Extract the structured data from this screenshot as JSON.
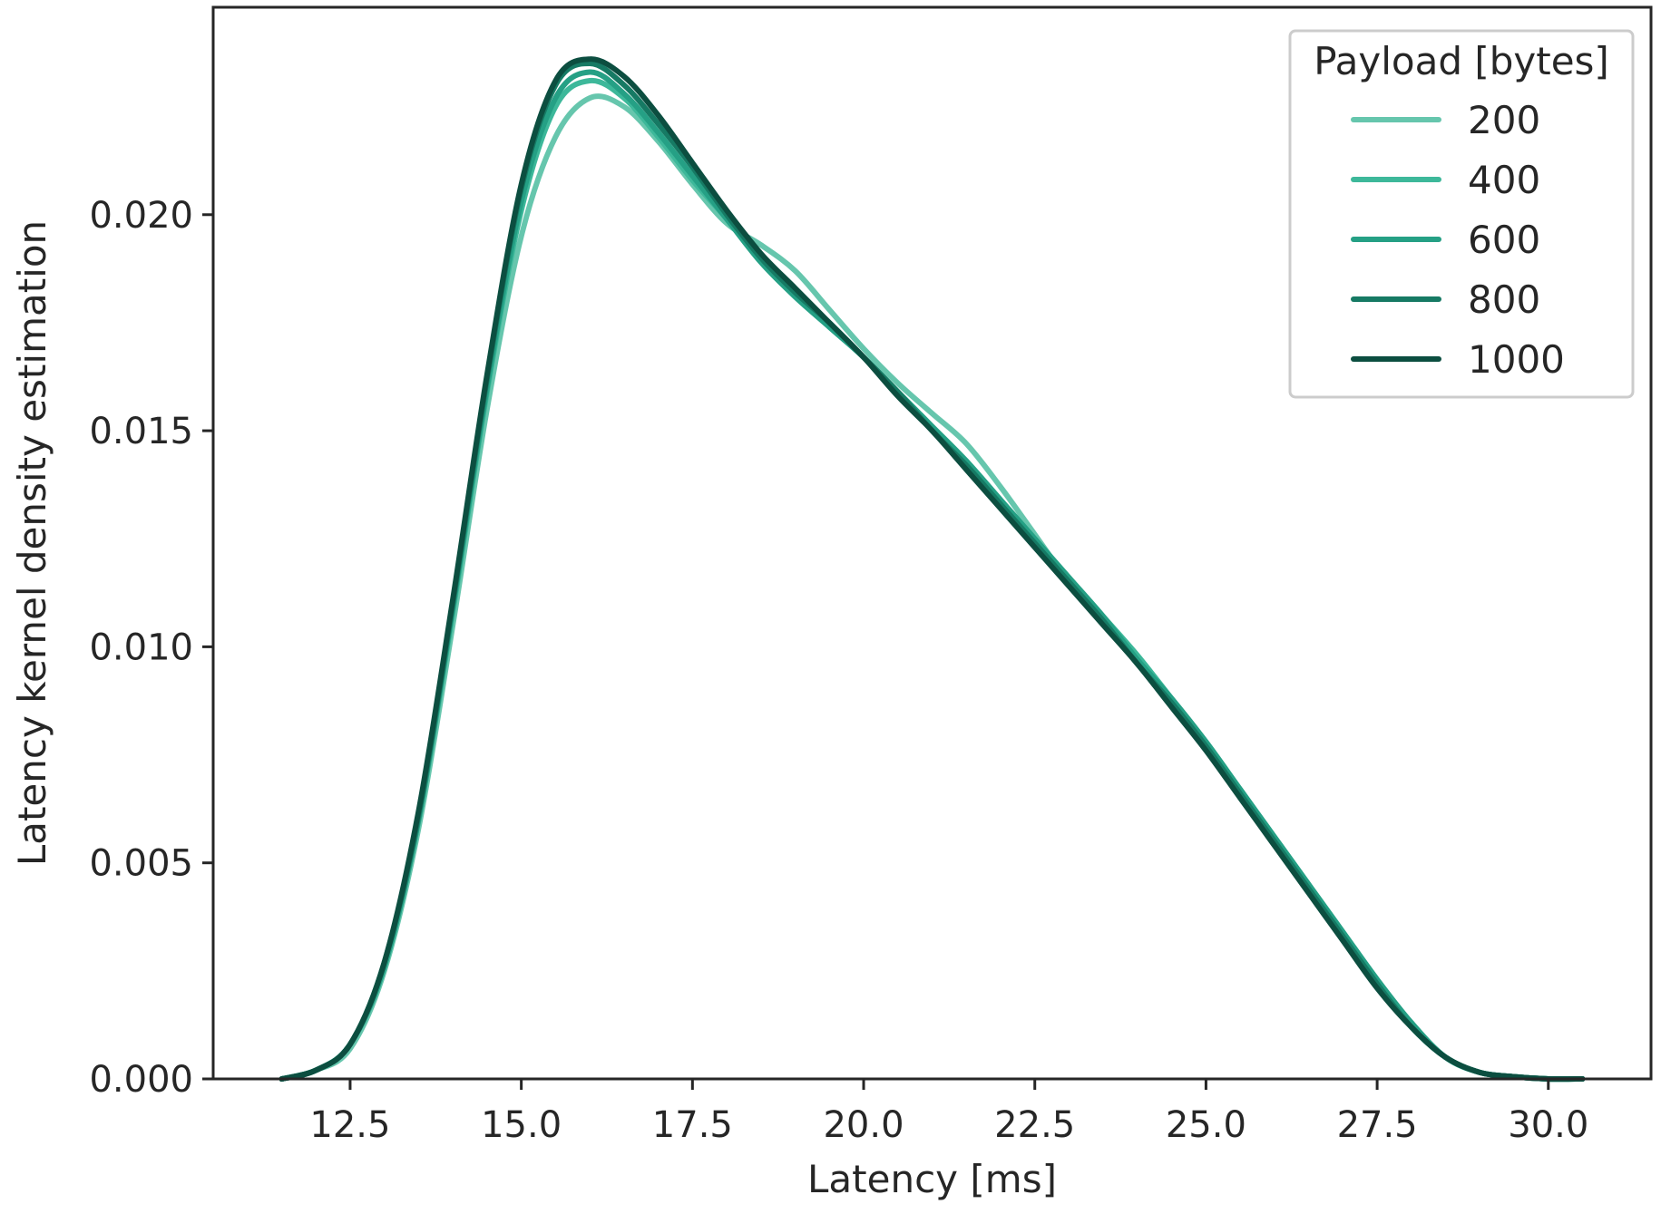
{
  "chart_data": {
    "type": "line",
    "title": "",
    "xlabel": "Latency [ms]",
    "ylabel": "Latency kernel density estimation",
    "xlim": [
      10.5,
      31.5
    ],
    "ylim": [
      0.0,
      0.0248
    ],
    "xticks": [
      12.5,
      15.0,
      17.5,
      20.0,
      22.5,
      25.0,
      27.5,
      30.0
    ],
    "xtick_labels": [
      "12.5",
      "15.0",
      "17.5",
      "20.0",
      "22.5",
      "25.0",
      "27.5",
      "30.0"
    ],
    "yticks": [
      0.0,
      0.005,
      0.01,
      0.015,
      0.02
    ],
    "ytick_labels": [
      "0.000",
      "0.005",
      "0.010",
      "0.015",
      "0.020"
    ],
    "grid": false,
    "legend": {
      "title": "Payload [bytes]",
      "placement": "top-right"
    },
    "series": [
      {
        "name": "200",
        "color": "#66c6ad",
        "x": [
          11.5,
          12.0,
          12.5,
          13.0,
          13.5,
          14.0,
          14.5,
          15.0,
          15.5,
          16.0,
          16.5,
          17.0,
          17.5,
          18.0,
          18.5,
          19.0,
          19.5,
          20.0,
          20.5,
          21.0,
          21.5,
          22.0,
          22.5,
          23.0,
          23.5,
          24.0,
          24.5,
          25.0,
          25.5,
          26.0,
          26.5,
          27.0,
          27.5,
          28.0,
          28.5,
          29.0,
          29.5,
          30.0,
          30.5
        ],
        "y": [
          0.0,
          0.0002,
          0.0007,
          0.0025,
          0.0058,
          0.0105,
          0.0155,
          0.0195,
          0.0218,
          0.0227,
          0.0225,
          0.0217,
          0.0207,
          0.0198,
          0.0193,
          0.0187,
          0.0178,
          0.0169,
          0.0161,
          0.0154,
          0.0147,
          0.0137,
          0.0126,
          0.0115,
          0.0106,
          0.0097,
          0.0087,
          0.0077,
          0.0066,
          0.0055,
          0.0044,
          0.0033,
          0.0022,
          0.0012,
          0.0005,
          0.00015,
          5e-05,
          0.0,
          0.0
        ]
      },
      {
        "name": "400",
        "color": "#3db89a",
        "x": [
          11.5,
          12.0,
          12.5,
          13.0,
          13.5,
          14.0,
          14.5,
          15.0,
          15.5,
          16.0,
          16.5,
          17.0,
          17.5,
          18.0,
          18.5,
          19.0,
          19.5,
          20.0,
          20.5,
          21.0,
          21.5,
          22.0,
          22.5,
          23.0,
          23.5,
          24.0,
          24.5,
          25.0,
          25.5,
          26.0,
          26.5,
          27.0,
          27.5,
          28.0,
          28.5,
          29.0,
          29.5,
          30.0,
          30.5
        ],
        "y": [
          0.0,
          0.0002,
          0.0008,
          0.0026,
          0.006,
          0.0108,
          0.0159,
          0.0201,
          0.0225,
          0.0231,
          0.0227,
          0.0218,
          0.0208,
          0.0199,
          0.0189,
          0.0181,
          0.0174,
          0.0167,
          0.0159,
          0.0151,
          0.0143,
          0.0134,
          0.0125,
          0.0116,
          0.0107,
          0.0098,
          0.0088,
          0.0078,
          0.0067,
          0.0056,
          0.0045,
          0.0034,
          0.0023,
          0.0013,
          0.0005,
          0.00015,
          5e-05,
          0.0,
          0.0
        ]
      },
      {
        "name": "600",
        "color": "#25a085",
        "x": [
          11.5,
          12.0,
          12.5,
          13.0,
          13.5,
          14.0,
          14.5,
          15.0,
          15.5,
          16.0,
          16.5,
          17.0,
          17.5,
          18.0,
          18.5,
          19.0,
          19.5,
          20.0,
          20.5,
          21.0,
          21.5,
          22.0,
          22.5,
          23.0,
          23.5,
          24.0,
          24.5,
          25.0,
          25.5,
          26.0,
          26.5,
          27.0,
          27.5,
          28.0,
          28.5,
          29.0,
          29.5,
          30.0,
          30.5
        ],
        "y": [
          0.0,
          0.0002,
          0.0008,
          0.0026,
          0.006,
          0.0109,
          0.016,
          0.0203,
          0.0227,
          0.0233,
          0.0228,
          0.0219,
          0.0209,
          0.0199,
          0.0189,
          0.0181,
          0.0174,
          0.0167,
          0.0159,
          0.0151,
          0.0143,
          0.0134,
          0.0125,
          0.0116,
          0.0107,
          0.0097,
          0.0088,
          0.0078,
          0.0067,
          0.0056,
          0.0045,
          0.0034,
          0.0023,
          0.0013,
          0.0005,
          0.00015,
          5e-05,
          0.0,
          0.0
        ]
      },
      {
        "name": "800",
        "color": "#167a64",
        "x": [
          11.5,
          12.0,
          12.5,
          13.0,
          13.5,
          14.0,
          14.5,
          15.0,
          15.5,
          16.0,
          16.5,
          17.0,
          17.5,
          18.0,
          18.5,
          19.0,
          19.5,
          20.0,
          20.5,
          21.0,
          21.5,
          22.0,
          22.5,
          23.0,
          23.5,
          24.0,
          24.5,
          25.0,
          25.5,
          26.0,
          26.5,
          27.0,
          27.5,
          28.0,
          28.5,
          29.0,
          29.5,
          30.0,
          30.5
        ],
        "y": [
          0.0,
          0.0002,
          0.0008,
          0.0027,
          0.0061,
          0.011,
          0.0162,
          0.0206,
          0.023,
          0.0235,
          0.023,
          0.0221,
          0.0211,
          0.02,
          0.019,
          0.0182,
          0.0175,
          0.0167,
          0.0159,
          0.015,
          0.0142,
          0.0133,
          0.0124,
          0.0115,
          0.0106,
          0.0096,
          0.0087,
          0.0077,
          0.0066,
          0.0055,
          0.0044,
          0.0033,
          0.0022,
          0.0012,
          0.0005,
          0.00015,
          5e-05,
          0.0,
          0.0
        ]
      },
      {
        "name": "1000",
        "color": "#0c4e40",
        "x": [
          11.5,
          12.0,
          12.5,
          13.0,
          13.5,
          14.0,
          14.5,
          15.0,
          15.5,
          16.0,
          16.5,
          17.0,
          17.5,
          18.0,
          18.5,
          19.0,
          19.5,
          20.0,
          20.5,
          21.0,
          21.5,
          22.0,
          22.5,
          23.0,
          23.5,
          24.0,
          24.5,
          25.0,
          25.5,
          26.0,
          26.5,
          27.0,
          27.5,
          28.0,
          28.5,
          29.0,
          29.5,
          30.0,
          30.5
        ],
        "y": [
          0.0,
          0.0002,
          0.0008,
          0.0027,
          0.0062,
          0.0111,
          0.0163,
          0.0207,
          0.0231,
          0.0236,
          0.0232,
          0.0223,
          0.0212,
          0.0201,
          0.0191,
          0.0183,
          0.0175,
          0.0167,
          0.0158,
          0.015,
          0.0141,
          0.0132,
          0.0123,
          0.0114,
          0.0105,
          0.0096,
          0.0086,
          0.0076,
          0.0065,
          0.0054,
          0.0043,
          0.0032,
          0.0021,
          0.0012,
          0.0005,
          0.00015,
          5e-05,
          0.0,
          0.0
        ]
      }
    ]
  }
}
